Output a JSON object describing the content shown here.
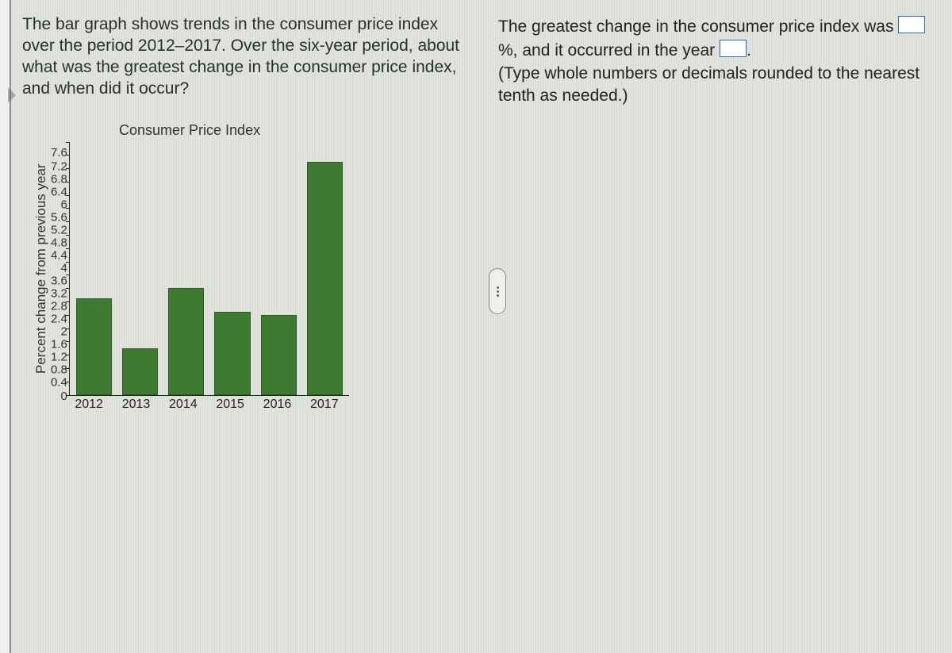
{
  "question_text": "The bar graph shows trends in the consumer price index over the period 2012–2017. Over the six-year period, about what was the greatest change in the consumer price index, and when did it occur?",
  "answer_line1_a": "The greatest change in the consumer price index was ",
  "answer_line1_b": "%, and it occurred in the year ",
  "answer_line1_c": ".",
  "hint_text": "(Type whole numbers or decimals rounded to the nearest tenth as needed.)",
  "chart": {
    "type": "bar",
    "title": "Consumer Price Index",
    "ylabel": "Percent change from previous year",
    "categories": [
      "2012",
      "2013",
      "2014",
      "2015",
      "2016",
      "2017"
    ],
    "values": [
      2.9,
      1.4,
      3.2,
      2.5,
      2.4,
      7.0
    ],
    "bar_color": "#3f7a32",
    "ymin": 0,
    "ymax": 7.6,
    "ytick_step": 0.4,
    "yticks": [
      "7.6",
      "7.2",
      "6.8",
      "6.4",
      "6",
      "5.6",
      "5.2",
      "4.8",
      "4.4",
      "4",
      "3.6",
      "3.2",
      "2.8",
      "2.4",
      "2",
      "1.6",
      "1.2",
      "0.8",
      "0.4",
      "0"
    ],
    "axis_color": "#222222",
    "background_color": "transparent",
    "title_fontsize": 18,
    "label_fontsize": 17,
    "tick_fontsize": 15
  }
}
